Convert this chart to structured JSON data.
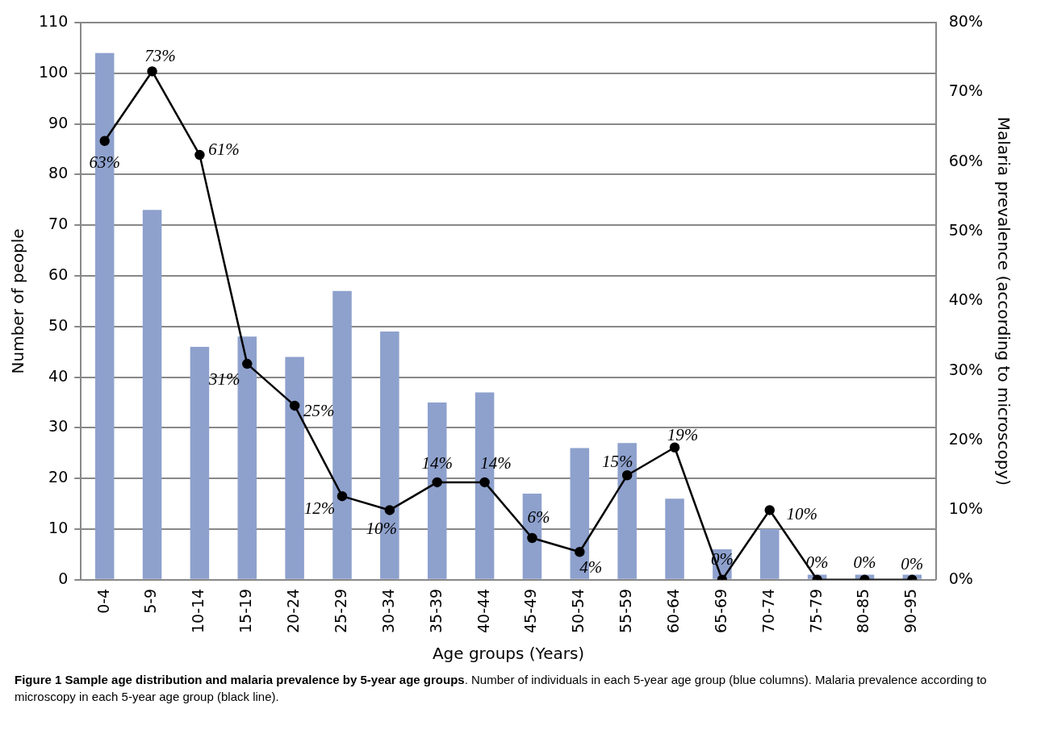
{
  "chart_data": {
    "type": "bar",
    "xlabel": "Age groups (Years)",
    "ylabel": "Number of people",
    "y2label": "Malaria prevalence (according to microscopy)",
    "categories": [
      "0-4",
      "5-9",
      "10-14",
      "15-19",
      "20-24",
      "25-29",
      "30-34",
      "35-39",
      "40-44",
      "45-49",
      "50-54",
      "55-59",
      "60-64",
      "65-69",
      "70-74",
      "75-79",
      "80-85",
      "90-95"
    ],
    "series": [
      {
        "color": "#8ea1cd",
        "values": [
          104,
          73,
          46,
          48,
          44,
          57,
          49,
          35,
          37,
          17,
          26,
          27,
          16,
          6,
          10,
          1,
          1,
          1
        ]
      },
      {
        "type": "line",
        "axis": "y2",
        "color": "#000000",
        "marker": "circle",
        "value_labels": [
          "63%",
          "73%",
          "61%",
          "31%",
          "25%",
          "12%",
          "10%",
          "14%",
          "14%",
          "6%",
          "4%",
          "15%",
          "19%",
          "0%",
          "10%",
          "0%",
          "0%",
          "0%"
        ],
        "values": [
          63,
          73,
          61,
          31,
          25,
          12,
          10,
          14,
          14,
          6,
          4,
          15,
          19,
          0,
          10,
          0,
          0,
          0
        ]
      }
    ],
    "ylim": [
      0,
      110
    ],
    "yticks": [
      0,
      10,
      20,
      30,
      40,
      50,
      60,
      70,
      80,
      90,
      100,
      110
    ],
    "y2lim": [
      0,
      80
    ],
    "y2ticks": [
      {
        "value": 0,
        "label": "0%"
      },
      {
        "value": 10,
        "label": "10%"
      },
      {
        "value": 20,
        "label": "20%"
      },
      {
        "value": 30,
        "label": "30%"
      },
      {
        "value": 40,
        "label": "40%"
      },
      {
        "value": 50,
        "label": "50%"
      },
      {
        "value": 60,
        "label": "60%"
      },
      {
        "value": 70,
        "label": "70%"
      },
      {
        "value": 80,
        "label": "80%"
      }
    ],
    "grid": "y",
    "legend": false,
    "annotations": [
      "Figure 1 Sample age distribution and malaria prevalence by 5-year age groups",
      ". Number of individuals in each 5-year age group (blue columns). Malaria prevalence according to microscopy in each 5-year age group (black line)."
    ]
  }
}
